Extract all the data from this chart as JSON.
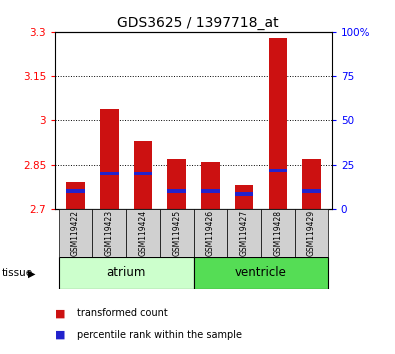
{
  "title": "GDS3625 / 1397718_at",
  "samples": [
    "GSM119422",
    "GSM119423",
    "GSM119424",
    "GSM119425",
    "GSM119426",
    "GSM119427",
    "GSM119428",
    "GSM119429"
  ],
  "red_values": [
    2.79,
    3.04,
    2.93,
    2.87,
    2.86,
    2.78,
    3.28,
    2.87
  ],
  "blue_values": [
    2.76,
    2.82,
    2.82,
    2.76,
    2.76,
    2.75,
    2.83,
    2.76
  ],
  "y_min": 2.7,
  "y_max": 3.3,
  "y_ticks": [
    2.7,
    2.85,
    3.0,
    3.15,
    3.3
  ],
  "y_tick_labels": [
    "2.7",
    "2.85",
    "3",
    "3.15",
    "3.3"
  ],
  "y2_ticks": [
    0,
    25,
    50,
    75,
    100
  ],
  "y2_tick_labels": [
    "0",
    "25",
    "50",
    "75",
    "100%"
  ],
  "left_tick_color": "red",
  "right_tick_color": "blue",
  "bar_width": 0.55,
  "red_bar_color": "#cc1111",
  "blue_bar_color": "#2222cc",
  "sample_bg_color": "#d0d0d0",
  "atrium_color": "#ccffcc",
  "ventricle_color": "#55dd55",
  "grid_dotted_at": [
    2.85,
    3.0,
    3.15
  ]
}
